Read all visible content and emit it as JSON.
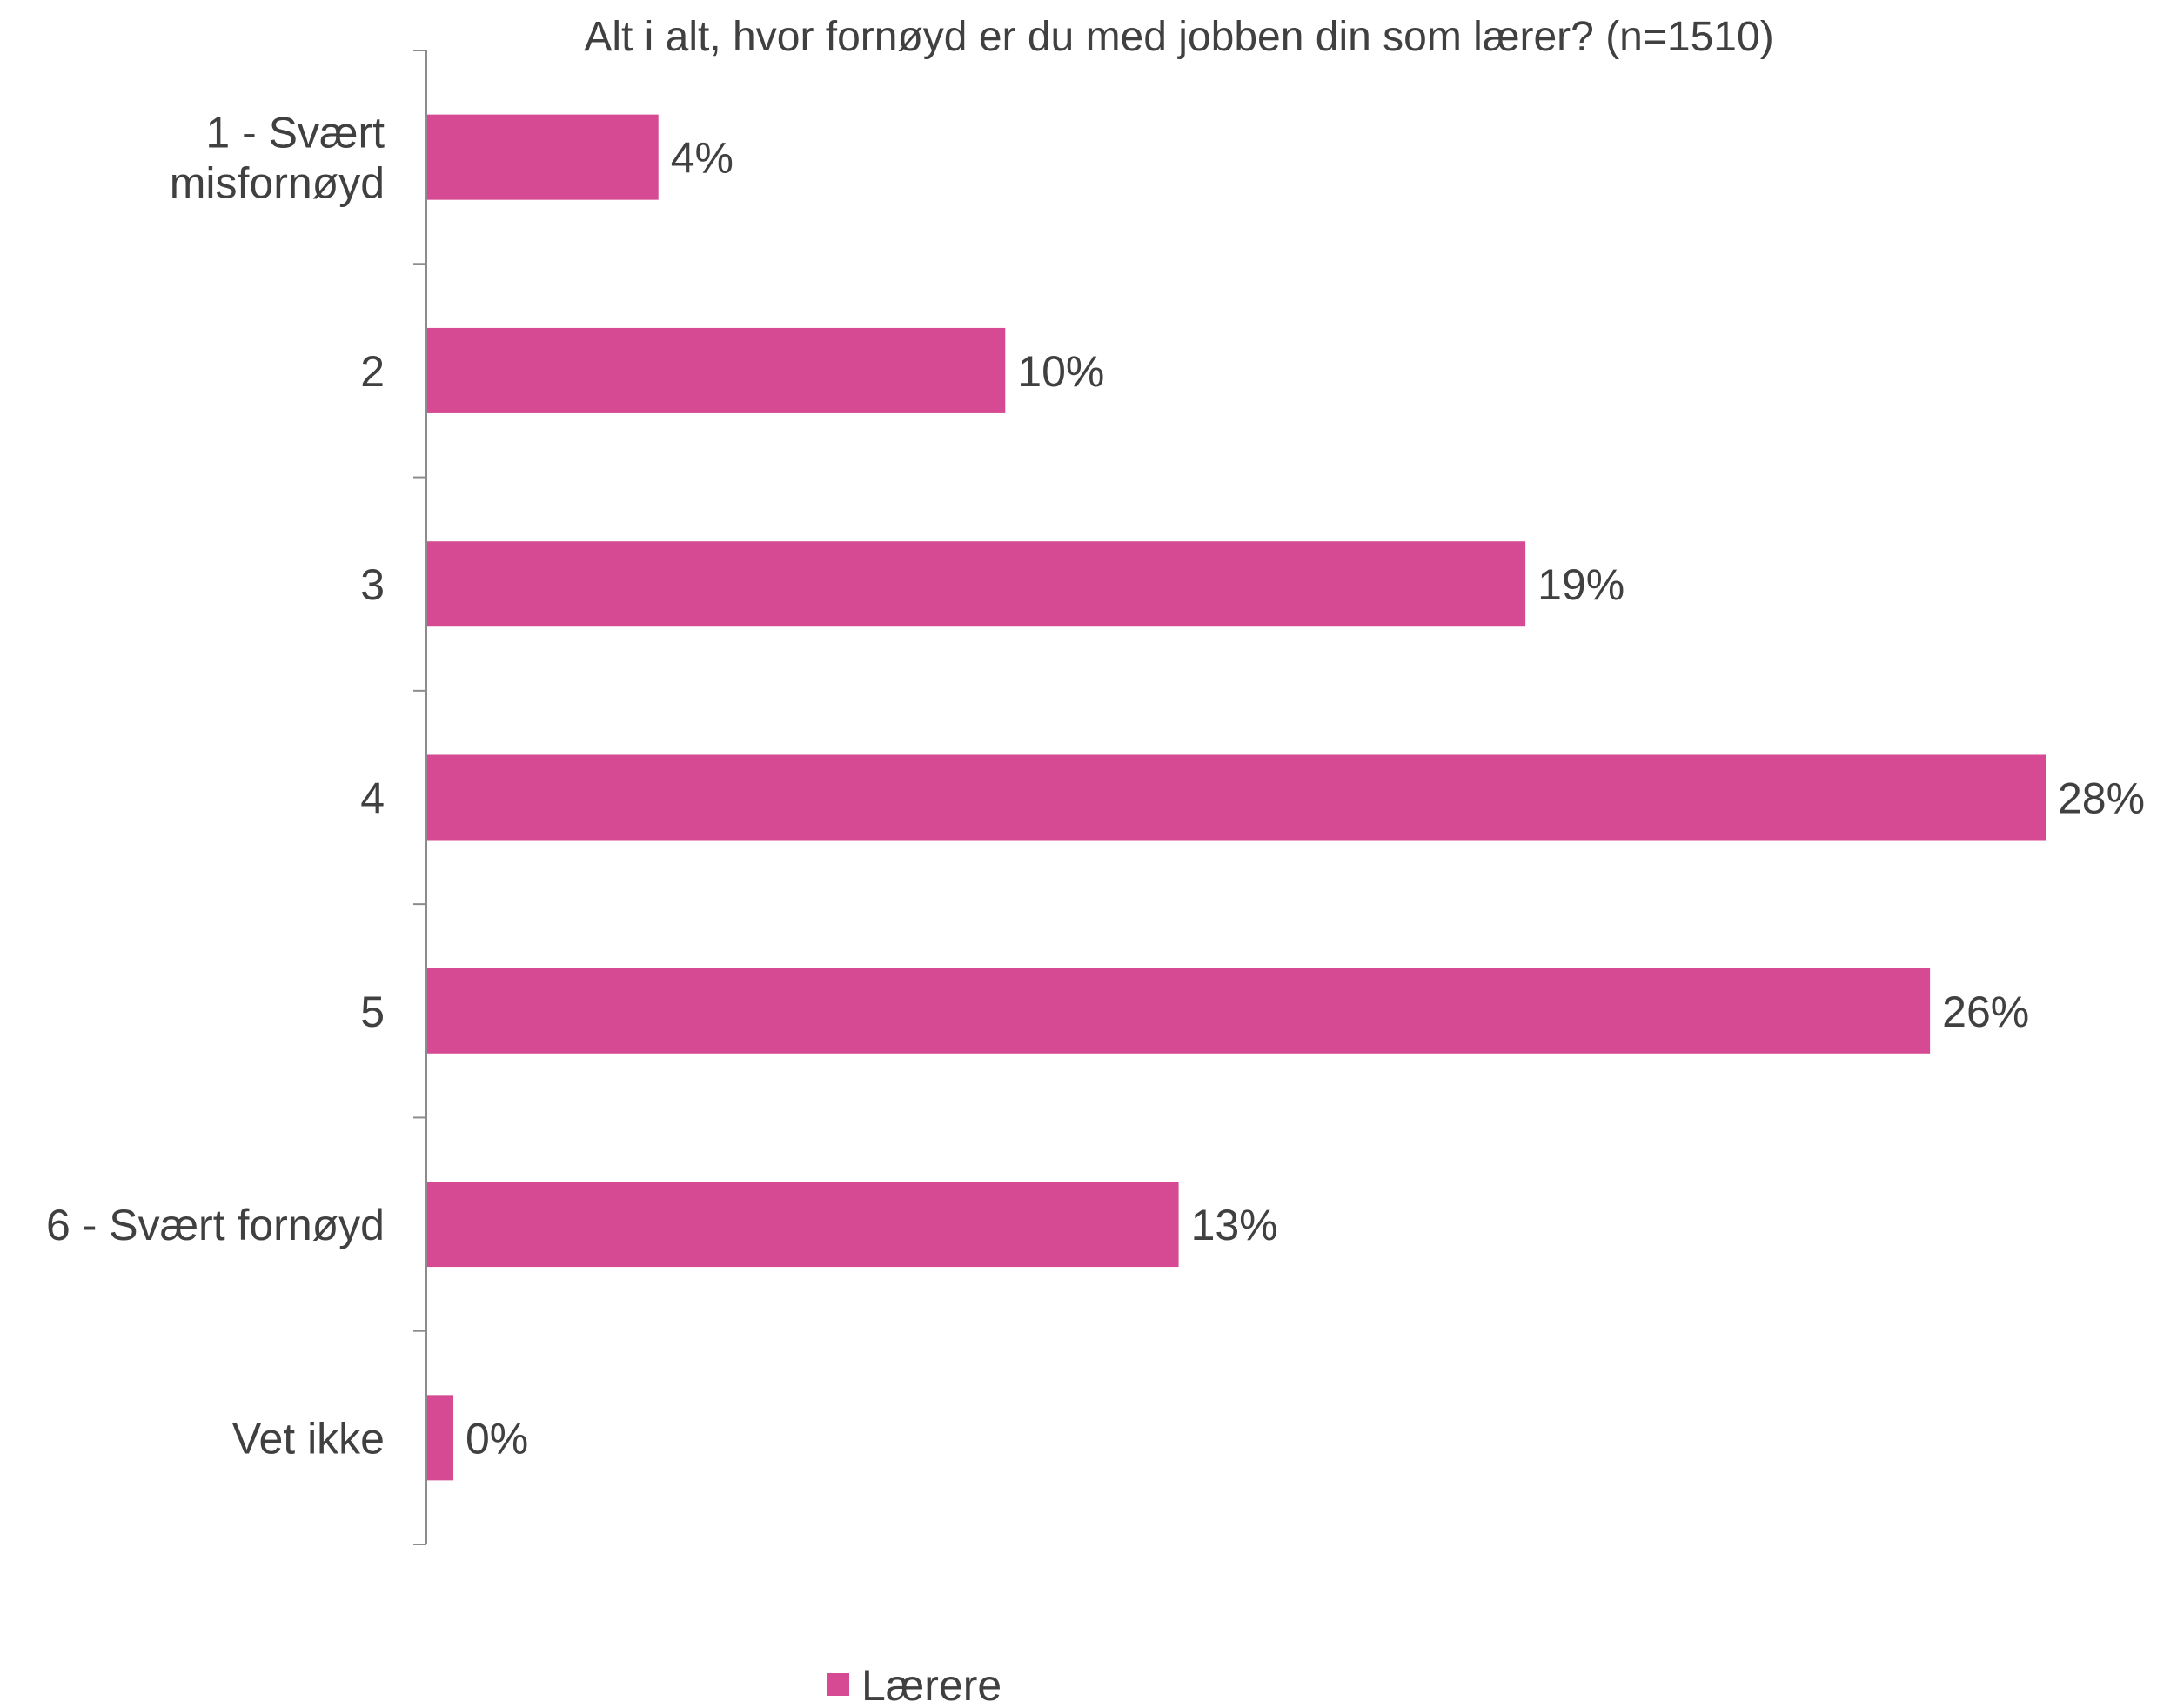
{
  "chart_data": {
    "type": "bar",
    "orientation": "horizontal",
    "title": "Alt i alt, hvor fornøyd er du med jobben din som lærer? (n=1510)",
    "categories": [
      [
        "1 - Svært",
        "misfornøyd"
      ],
      [
        "2"
      ],
      [
        "3"
      ],
      [
        "4"
      ],
      [
        "5"
      ],
      [
        "6 - Svært fornøyd"
      ],
      [
        "Vet ikke"
      ]
    ],
    "series": [
      {
        "name": "Lærere",
        "color": "#D64A93",
        "values": [
          4,
          10,
          19,
          28,
          26,
          13,
          0
        ],
        "labels": [
          "4%",
          "10%",
          "19%",
          "28%",
          "26%",
          "13%",
          "0%"
        ]
      }
    ],
    "xlim": [
      0,
      28
    ],
    "grid": false,
    "legend_position": "bottom"
  }
}
